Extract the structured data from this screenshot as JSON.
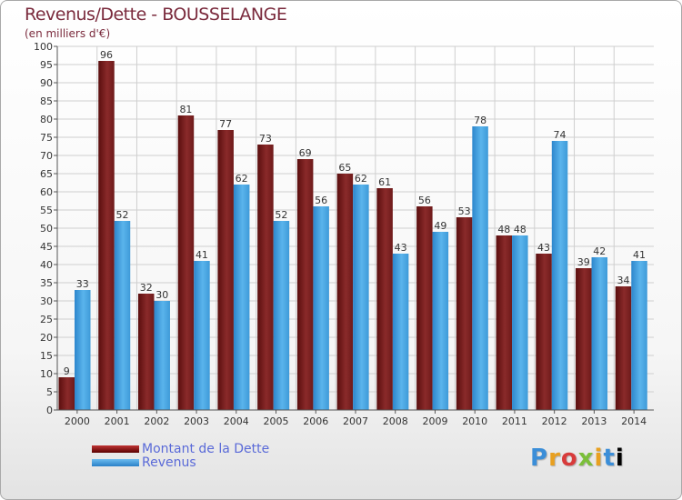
{
  "colors": {
    "debt": "#6e1a1a",
    "revenue": "#4aa6e4",
    "title": "#7a2a3c",
    "legend_text": "#5a6ad8"
  },
  "chart_data": {
    "type": "bar",
    "title": "Revenus/Dette - BOUSSELANGE",
    "subtitle": "(en milliers d'€)",
    "categories": [
      "2000",
      "2001",
      "2002",
      "2003",
      "2004",
      "2005",
      "2006",
      "2007",
      "2008",
      "2009",
      "2010",
      "2011",
      "2012",
      "2013",
      "2014"
    ],
    "series": [
      {
        "name": "Montant de la Dette",
        "values": [
          9,
          96,
          32,
          81,
          77,
          73,
          69,
          65,
          61,
          56,
          53,
          48,
          43,
          39,
          34
        ]
      },
      {
        "name": "Revenus",
        "values": [
          33,
          52,
          30,
          41,
          62,
          52,
          56,
          62,
          43,
          49,
          78,
          48,
          74,
          42,
          41
        ]
      }
    ],
    "ylim": [
      0,
      100
    ],
    "ytick_step": 5,
    "grid": true,
    "legend_position": "bottom-left"
  },
  "legend": {
    "debt_label": "Montant de la Dette",
    "revenue_label": "Revenus"
  },
  "logo": {
    "letters": [
      "P",
      "r",
      "o",
      "x",
      "i",
      "t",
      "i"
    ]
  }
}
